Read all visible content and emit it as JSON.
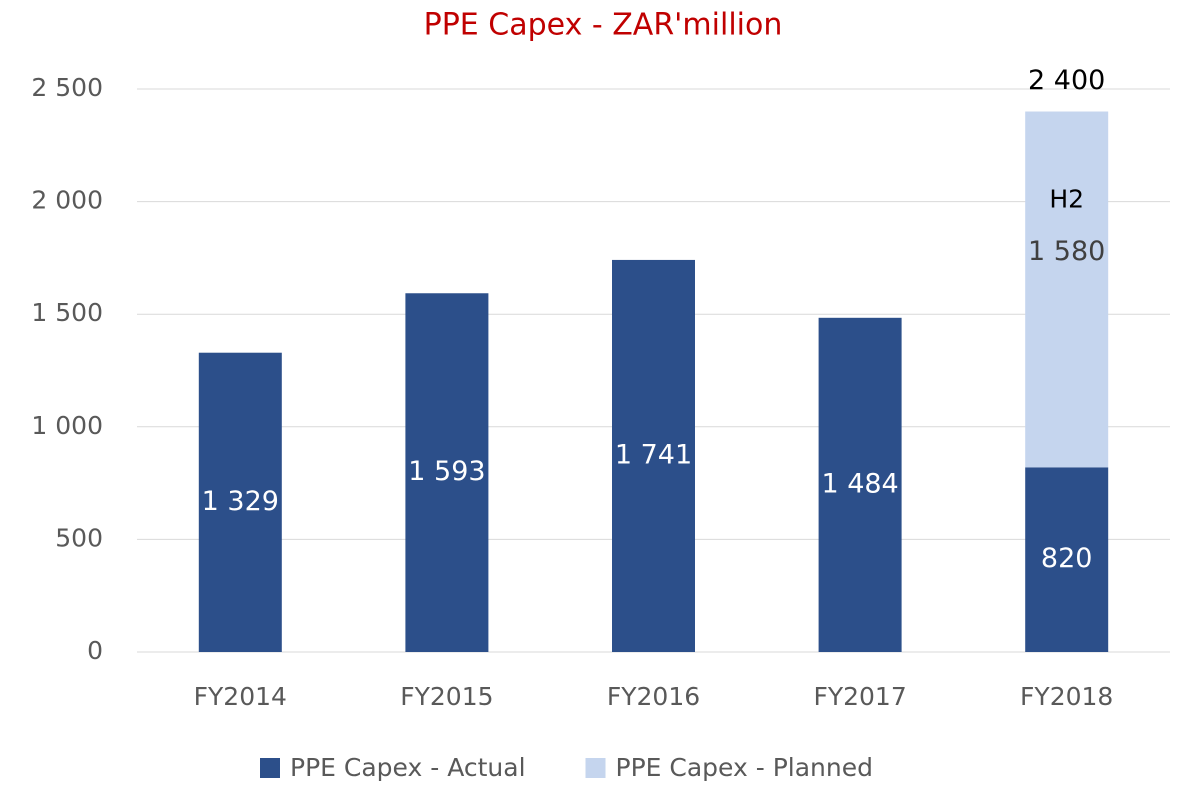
{
  "chart_data": {
    "type": "stacked_bar",
    "title": "PPE Capex - ZAR'million",
    "categories": [
      "FY2014",
      "FY2015",
      "FY2016",
      "FY2017",
      "FY2018"
    ],
    "series": [
      {
        "name": "PPE Capex - Actual",
        "color": "#2c4f8a",
        "values": [
          1329,
          1593,
          1741,
          1484,
          820
        ],
        "value_labels": [
          "1 329",
          "1 593",
          "1 741",
          "1 484",
          "820"
        ]
      },
      {
        "name": "PPE Capex - Planned",
        "color": "#c5d5ee",
        "values": [
          null,
          null,
          null,
          null,
          1580
        ],
        "value_labels": [
          null,
          null,
          null,
          null,
          "1 580"
        ]
      }
    ],
    "annotations": [
      {
        "label": "2 400",
        "value": 2400,
        "category": 4
      },
      {
        "label": "H2",
        "category": 4
      }
    ],
    "ylim": [
      0,
      2500
    ],
    "yticks": [
      0,
      500,
      {
        "value": 1000,
        "label": "1 000"
      },
      {
        "value": 1500,
        "label": "1 500"
      },
      {
        "value": 2000,
        "label": "2 000"
      },
      {
        "value": 2500,
        "label": "2 500"
      }
    ],
    "grid": true,
    "legend": "bottom"
  }
}
